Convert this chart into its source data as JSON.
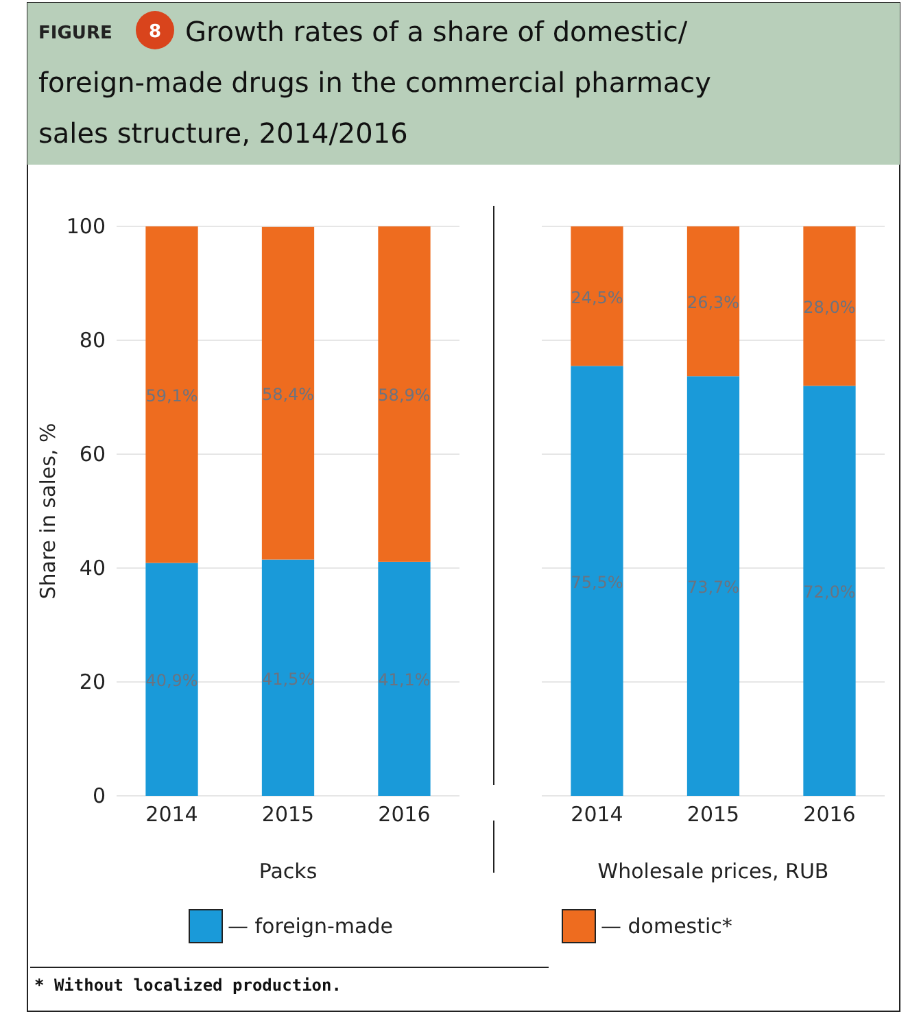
{
  "chart_data": [
    {
      "type": "bar",
      "title": "Growth rates of a share of domestic/ foreign-made drugs in the commercial pharmacy sales structure, 2014/2016",
      "ylabel": "Share in sales, %",
      "xlabel": "Packs",
      "stacked": true,
      "categories": [
        "2014",
        "2015",
        "2016"
      ],
      "ylim": [
        0,
        100
      ],
      "yticks": [
        0,
        20,
        40,
        60,
        80,
        100
      ],
      "grid": "y",
      "legend": "bottom",
      "annotations": [
        "FIGURE",
        "8",
        "* Without localized production."
      ],
      "series": [
        {
          "name": "— foreign-made",
          "color": "#1a9ad9",
          "values": [
            40.9,
            41.5,
            41.1
          ],
          "value_labels": [
            "40,9%",
            "41,5%",
            "41,1%"
          ]
        },
        {
          "name": "— domestic*",
          "color": "#ee6c1f",
          "values": [
            59.1,
            58.4,
            58.9
          ],
          "value_labels": [
            "59,1%",
            "58,4%",
            "58,9%"
          ]
        }
      ]
    },
    {
      "type": "bar",
      "xlabel": "Wholesale prices, RUB",
      "stacked": true,
      "categories": [
        "2014",
        "2015",
        "2016"
      ],
      "ylim": [
        0,
        100
      ],
      "yticks": [
        0,
        20,
        40,
        60,
        80,
        100
      ],
      "grid": "y",
      "tick_labels": "x",
      "series": [
        {
          "color": "#1a9ad9",
          "values": [
            75.5,
            73.7,
            72.0
          ],
          "value_labels": [
            "75,5%",
            "73,7%",
            "72,0%"
          ]
        },
        {
          "color": "#ee6c1f",
          "values": [
            24.5,
            26.3,
            28.0
          ],
          "value_labels": [
            "24,5%",
            "26,3%",
            "28,0%"
          ]
        }
      ]
    }
  ]
}
